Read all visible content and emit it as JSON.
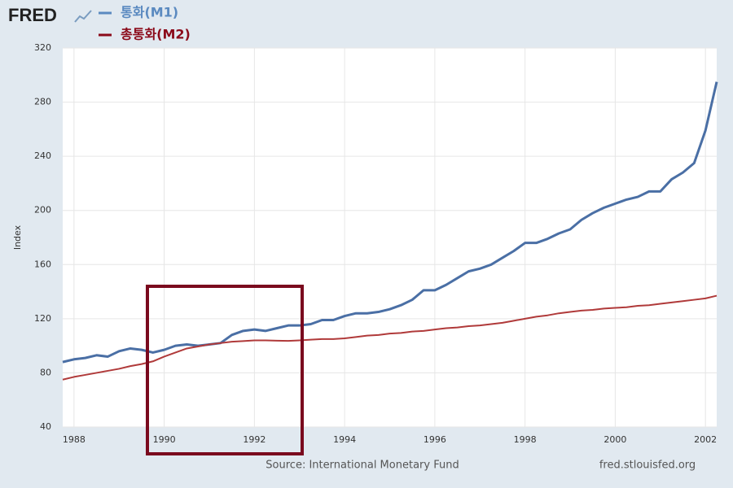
{
  "chart_data": {
    "type": "line",
    "logo": "FRED",
    "y_label": "Index",
    "source": "Source: International Monetary Fund",
    "site": "fred.stlouisfed.org",
    "x": [
      1987.75,
      1988,
      1988.25,
      1988.5,
      1988.75,
      1989,
      1989.25,
      1989.5,
      1989.75,
      1990,
      1990.25,
      1990.5,
      1990.75,
      1991,
      1991.25,
      1991.5,
      1991.75,
      1992,
      1992.25,
      1992.5,
      1992.75,
      1993,
      1993.25,
      1993.5,
      1993.75,
      1994,
      1994.25,
      1994.5,
      1994.75,
      1995,
      1995.25,
      1995.5,
      1995.75,
      1996,
      1996.25,
      1996.5,
      1996.75,
      1997,
      1997.25,
      1997.5,
      1997.75,
      1998,
      1998.25,
      1998.5,
      1998.75,
      1999,
      1999.25,
      1999.5,
      1999.75,
      2000,
      2000.25,
      2000.5,
      2000.75,
      2001,
      2001.25,
      2001.5,
      2001.75,
      2002,
      2002.25
    ],
    "series": [
      {
        "name": "통화(M1)",
        "color": "#4a6fa5",
        "legend_color": "#5b8ac0",
        "values": [
          88,
          90,
          91,
          93,
          92,
          96,
          98,
          97,
          95,
          97,
          100,
          101,
          100,
          101,
          102,
          108,
          111,
          112,
          111,
          113,
          115,
          115,
          116,
          119,
          119,
          122,
          124,
          124,
          125,
          127,
          130,
          134,
          141,
          141,
          145,
          150,
          155,
          157,
          160,
          165,
          170,
          176,
          176,
          179,
          183,
          186,
          193,
          198,
          202,
          205,
          208,
          210,
          214,
          214,
          223,
          228,
          235,
          259,
          295
        ]
      },
      {
        "name": "총통화(M2)",
        "color": "#b03a3a",
        "legend_color": "#8b0a1a",
        "values": [
          75,
          77,
          78.5,
          80,
          81.5,
          83,
          85,
          86.5,
          88.5,
          92,
          95,
          98,
          99.5,
          101,
          102,
          103,
          103.5,
          104,
          104,
          103.8,
          103.6,
          104,
          104.5,
          105,
          105,
          105.5,
          106.5,
          107.5,
          108,
          109,
          109.5,
          110.5,
          111,
          112,
          113,
          113.5,
          114.5,
          115,
          116,
          117,
          118.5,
          120,
          121.5,
          122.5,
          124,
          125,
          126,
          126.5,
          127.5,
          128,
          128.5,
          129.5,
          130,
          131,
          132,
          133,
          134,
          135,
          137
        ]
      }
    ],
    "xlim": [
      1987.75,
      2002.25
    ],
    "xticks": [
      1988,
      1990,
      1992,
      1994,
      1996,
      1998,
      2000,
      2002
    ],
    "ylim": [
      40,
      320
    ],
    "yticks": [
      40,
      80,
      120,
      160,
      200,
      240,
      280,
      320
    ],
    "grid": true
  }
}
